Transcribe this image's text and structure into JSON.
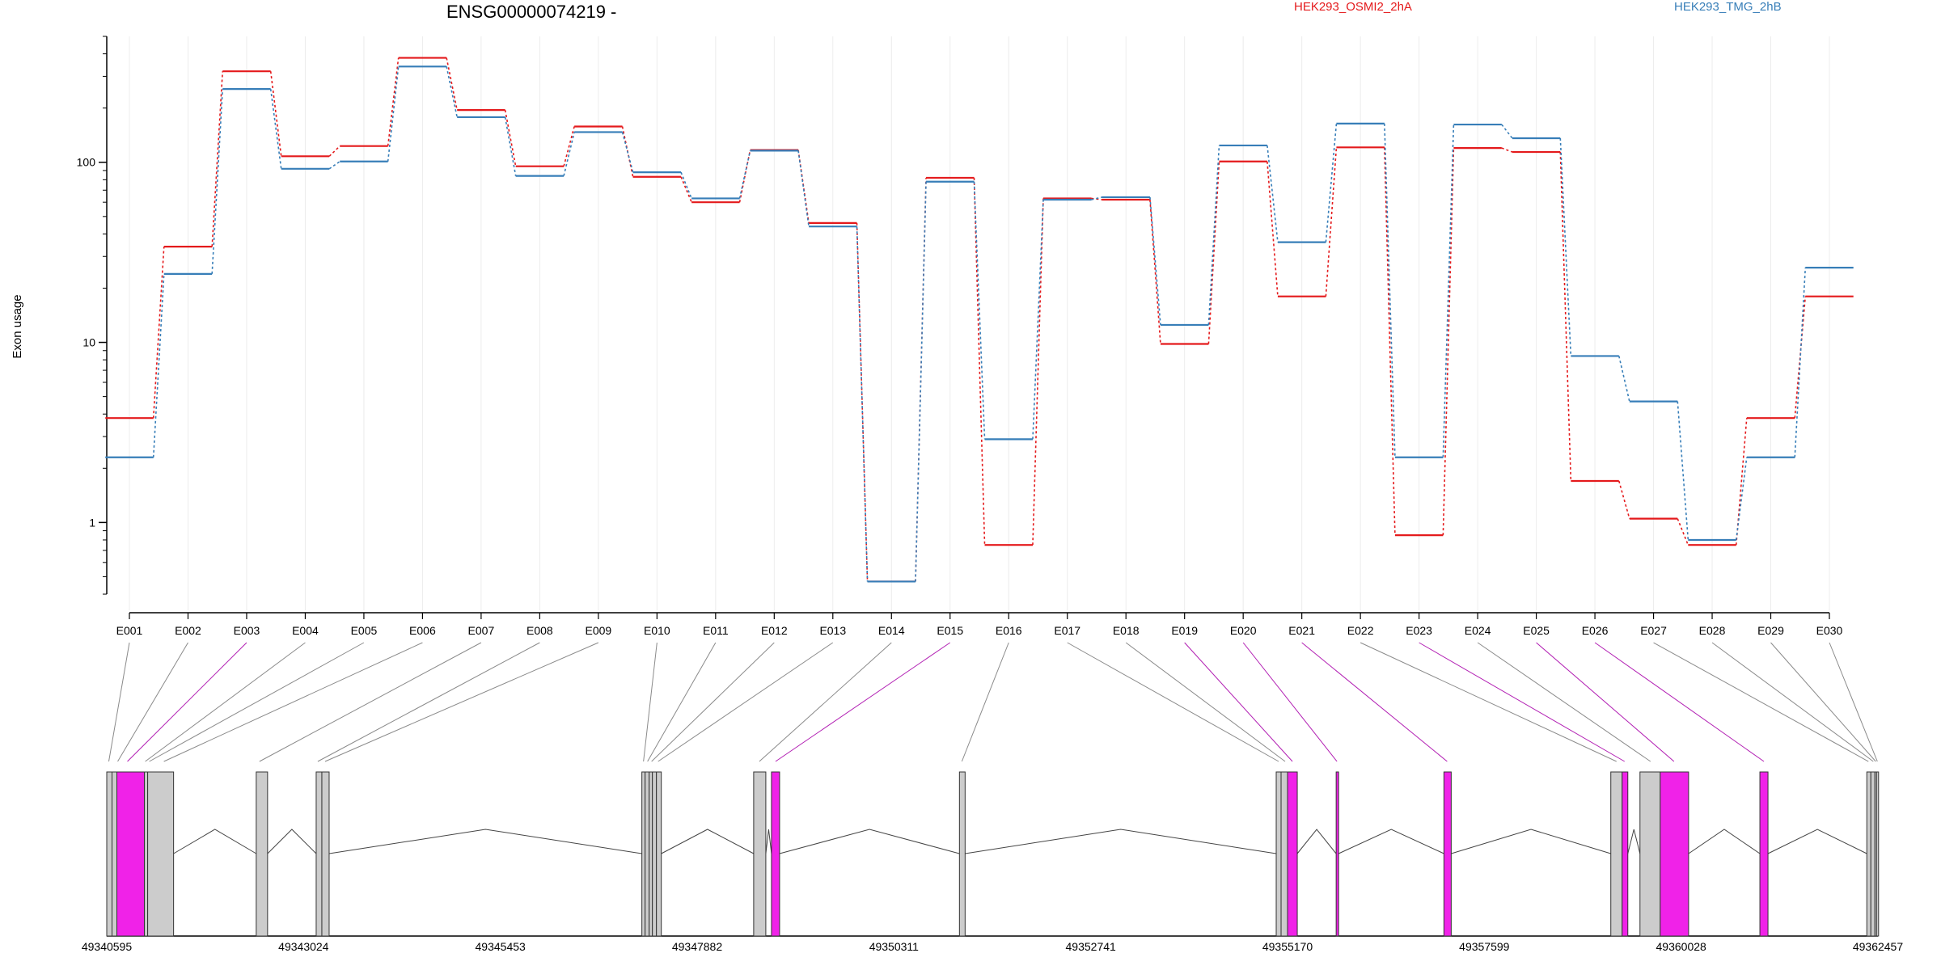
{
  "chart_data": {
    "type": "line",
    "title": "ENSG00000074219 -",
    "ylabel": "Exon usage",
    "yscale": "log",
    "ylim": [
      0.38,
      500
    ],
    "yticks": [
      {
        "value": 1,
        "label": "1"
      },
      {
        "value": 10,
        "label": "10"
      },
      {
        "value": 100,
        "label": "100"
      }
    ],
    "grid": true,
    "legend_position": "top-right",
    "categories": [
      "E001",
      "E002",
      "E003",
      "E004",
      "E005",
      "E006",
      "E007",
      "E008",
      "E009",
      "E010",
      "E011",
      "E012",
      "E013",
      "E014",
      "E015",
      "E016",
      "E017",
      "E018",
      "E019",
      "E020",
      "E021",
      "E022",
      "E023",
      "E024",
      "E025",
      "E026",
      "E027",
      "E028",
      "E029",
      "E030"
    ],
    "series": [
      {
        "name": "HEK293_OSMI2_2hA",
        "color": "#e41a1c",
        "values": [
          3.8,
          34,
          320,
          108,
          123,
          380,
          195,
          95,
          158,
          83,
          60,
          117,
          46,
          0.47,
          82,
          0.75,
          63,
          62,
          9.8,
          101,
          18,
          121,
          0.85,
          120,
          114,
          1.7,
          1.05,
          0.75,
          3.8,
          18
        ]
      },
      {
        "name": "HEK293_TMG_2hB",
        "color": "#377eb8",
        "values": [
          2.3,
          24,
          255,
          92,
          101,
          340,
          178,
          84,
          147,
          88,
          63,
          116,
          44,
          0.47,
          78,
          2.9,
          62,
          64,
          12.5,
          124,
          36,
          164,
          2.3,
          162,
          136,
          8.4,
          4.7,
          0.8,
          2.3,
          26
        ]
      }
    ],
    "gene_model": {
      "strand": "-",
      "coordinate_ticks": [
        "49340595",
        "49343024",
        "49345453",
        "49347882",
        "49350311",
        "49352741",
        "49355170",
        "49357599",
        "49360028",
        "49362457"
      ],
      "range": [
        49340595,
        49362457
      ],
      "highlight_color": "#f022e8",
      "exons": [
        {
          "id": "E001",
          "start": 49340595,
          "end": 49340660,
          "highlight": false
        },
        {
          "id": "E002",
          "start": 49340660,
          "end": 49340720,
          "highlight": false
        },
        {
          "id": "E003",
          "start": 49340720,
          "end": 49341060,
          "highlight": true
        },
        {
          "id": "E004",
          "start": 49341060,
          "end": 49341100,
          "highlight": false
        },
        {
          "id": "E005",
          "start": 49341100,
          "end": 49341420,
          "highlight": false
        },
        {
          "id": "E006",
          "start": 49342440,
          "end": 49342580,
          "highlight": false
        },
        {
          "id": "E007",
          "start": 49343180,
          "end": 49343250,
          "highlight": false
        },
        {
          "id": "E008",
          "start": 49343250,
          "end": 49343340,
          "highlight": false
        },
        {
          "id": "E009",
          "start": 49347200,
          "end": 49347240,
          "highlight": false
        },
        {
          "id": "E010",
          "start": 49347240,
          "end": 49347290,
          "highlight": false
        },
        {
          "id": "E011",
          "start": 49347290,
          "end": 49347330,
          "highlight": false
        },
        {
          "id": "E012",
          "start": 49347330,
          "end": 49347380,
          "highlight": false
        },
        {
          "id": "E013",
          "start": 49347380,
          "end": 49347440,
          "highlight": false
        },
        {
          "id": "E014",
          "start": 49348580,
          "end": 49348730,
          "highlight": false
        },
        {
          "id": "E015",
          "start": 49348800,
          "end": 49348900,
          "highlight": true
        },
        {
          "id": "E016",
          "start": 49351120,
          "end": 49351190,
          "highlight": false
        },
        {
          "id": "E017",
          "start": 49355030,
          "end": 49355090,
          "highlight": false
        },
        {
          "id": "E018",
          "start": 49355090,
          "end": 49355170,
          "highlight": false
        },
        {
          "id": "E019",
          "start": 49355170,
          "end": 49355290,
          "highlight": true
        },
        {
          "id": "E020",
          "start": 49355770,
          "end": 49355800,
          "highlight": true
        },
        {
          "id": "E021",
          "start": 49357100,
          "end": 49357190,
          "highlight": true
        },
        {
          "id": "E022",
          "start": 49359160,
          "end": 49359300,
          "highlight": false
        },
        {
          "id": "E023",
          "start": 49359300,
          "end": 49359370,
          "highlight": true
        },
        {
          "id": "E024",
          "start": 49359520,
          "end": 49359770,
          "highlight": false
        },
        {
          "id": "E025",
          "start": 49359770,
          "end": 49360120,
          "highlight": true
        },
        {
          "id": "E026",
          "start": 49361000,
          "end": 49361100,
          "highlight": true
        },
        {
          "id": "E027",
          "start": 49362320,
          "end": 49362370,
          "highlight": false
        },
        {
          "id": "E028",
          "start": 49362370,
          "end": 49362420,
          "highlight": false
        },
        {
          "id": "E029",
          "start": 49362420,
          "end": 49362440,
          "highlight": false
        },
        {
          "id": "E030",
          "start": 49362440,
          "end": 49362457,
          "highlight": false
        }
      ],
      "connectors": [
        {
          "exon": "E001",
          "target": 49340620,
          "highlight": false
        },
        {
          "exon": "E002",
          "target": 49340730,
          "highlight": false
        },
        {
          "exon": "E003",
          "target": 49340850,
          "highlight": true
        },
        {
          "exon": "E004",
          "target": 49341070,
          "highlight": false
        },
        {
          "exon": "E005",
          "target": 49341120,
          "highlight": false
        },
        {
          "exon": "E006",
          "target": 49341300,
          "highlight": false
        },
        {
          "exon": "E007",
          "target": 49342480,
          "highlight": false
        },
        {
          "exon": "E008",
          "target": 49343200,
          "highlight": false
        },
        {
          "exon": "E009",
          "target": 49343290,
          "highlight": false
        },
        {
          "exon": "E010",
          "target": 49347220,
          "highlight": false
        },
        {
          "exon": "E011",
          "target": 49347270,
          "highlight": false
        },
        {
          "exon": "E012",
          "target": 49347320,
          "highlight": false
        },
        {
          "exon": "E013",
          "target": 49347400,
          "highlight": false
        },
        {
          "exon": "E014",
          "target": 49348650,
          "highlight": false
        },
        {
          "exon": "E015",
          "target": 49348850,
          "highlight": true
        },
        {
          "exon": "E016",
          "target": 49351150,
          "highlight": false
        },
        {
          "exon": "E017",
          "target": 49355060,
          "highlight": false
        },
        {
          "exon": "E018",
          "target": 49355140,
          "highlight": false
        },
        {
          "exon": "E019",
          "target": 49355230,
          "highlight": true
        },
        {
          "exon": "E020",
          "target": 49355780,
          "highlight": true
        },
        {
          "exon": "E021",
          "target": 49357140,
          "highlight": true
        },
        {
          "exon": "E022",
          "target": 49359230,
          "highlight": false
        },
        {
          "exon": "E023",
          "target": 49359330,
          "highlight": true
        },
        {
          "exon": "E024",
          "target": 49359650,
          "highlight": false
        },
        {
          "exon": "E025",
          "target": 49359940,
          "highlight": true
        },
        {
          "exon": "E026",
          "target": 49361050,
          "highlight": true
        },
        {
          "exon": "E027",
          "target": 49362340,
          "highlight": false
        },
        {
          "exon": "E028",
          "target": 49362400,
          "highlight": false
        },
        {
          "exon": "E029",
          "target": 49362430,
          "highlight": false
        },
        {
          "exon": "E030",
          "target": 49362450,
          "highlight": false
        }
      ]
    }
  }
}
